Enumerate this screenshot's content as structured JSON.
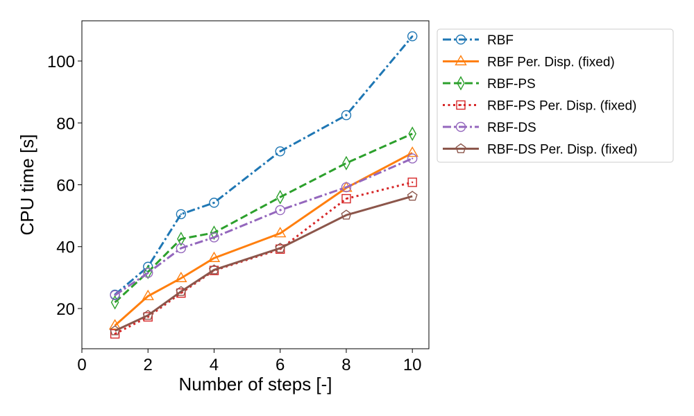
{
  "chart_data": {
    "type": "line",
    "xlabel": "Number of steps [-]",
    "ylabel": "CPU time [s]",
    "xlim": [
      0,
      10.5
    ],
    "ylim": [
      7,
      113
    ],
    "xticks": [
      0,
      2,
      4,
      6,
      8,
      10
    ],
    "yticks": [
      20,
      40,
      60,
      80,
      100
    ],
    "grid": false,
    "legend_position": "outside-right-top",
    "x": [
      1,
      2,
      3,
      4,
      6,
      8,
      10
    ],
    "series": [
      {
        "name": "RBF",
        "color": "#1f77b4",
        "line_style": "dashdot",
        "marker": "circle",
        "values": [
          24.5,
          33.5,
          50.5,
          54.2,
          70.8,
          82.5,
          108
        ]
      },
      {
        "name": "RBF Per. Disp. (fixed)",
        "color": "#ff7f0e",
        "line_style": "solid",
        "marker": "triangle-up",
        "values": [
          14.5,
          24.0,
          29.8,
          36.3,
          44.3,
          59.0,
          70.3
        ]
      },
      {
        "name": "RBF-PS",
        "color": "#2ca02c",
        "line_style": "dashed",
        "marker": "thin-diamond",
        "values": [
          22.0,
          31.8,
          42.5,
          44.5,
          56.0,
          67.0,
          76.5
        ]
      },
      {
        "name": "RBF-PS Per. Disp. (fixed)",
        "color": "#d62728",
        "line_style": "dotted",
        "marker": "square",
        "values": [
          11.8,
          17.3,
          25.0,
          32.3,
          39.2,
          55.5,
          60.8
        ]
      },
      {
        "name": "RBF-DS",
        "color": "#9467bd",
        "line_style": "dashdot",
        "marker": "circle",
        "values": [
          24.3,
          31.5,
          39.5,
          43.0,
          51.8,
          59.2,
          68.5
        ]
      },
      {
        "name": "RBF-DS Per. Disp.  (fixed)",
        "color": "#8c564b",
        "line_style": "solid",
        "marker": "pentagon",
        "values": [
          12.8,
          17.8,
          25.5,
          32.5,
          39.5,
          50.2,
          56.3
        ]
      }
    ]
  }
}
